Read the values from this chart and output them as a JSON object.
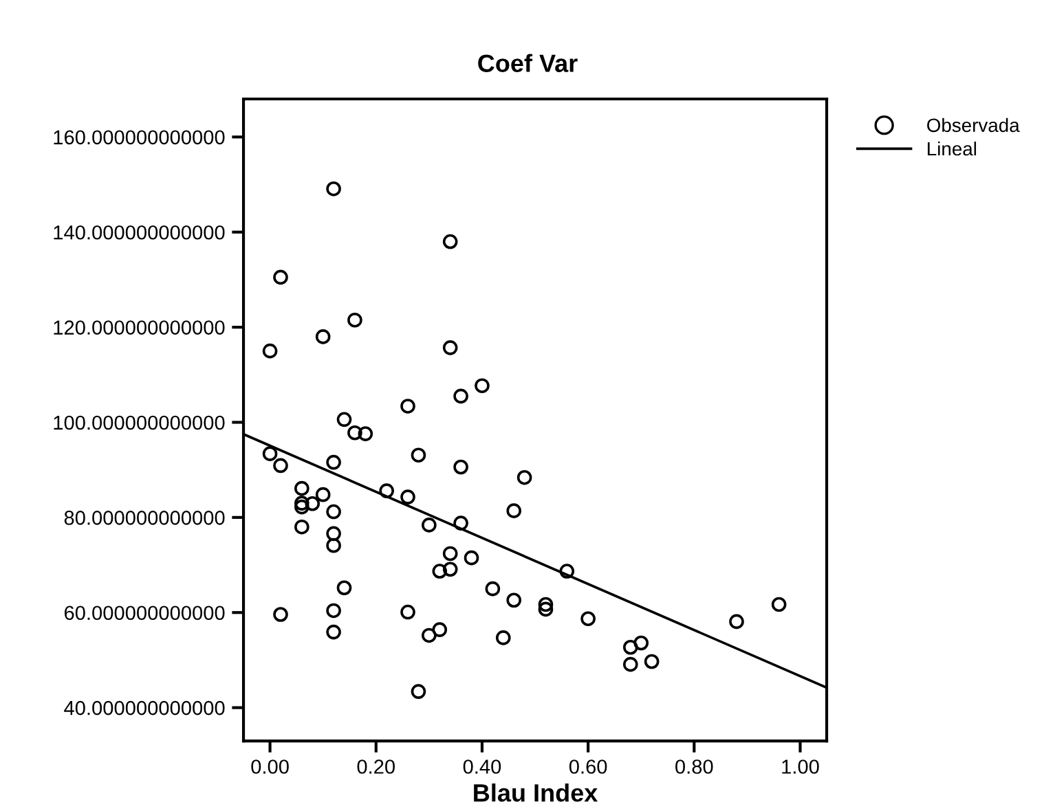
{
  "chart_data": {
    "type": "scatter",
    "title": "Coef Var",
    "xlabel": "Blau Index",
    "xlim": [
      -0.05,
      1.05
    ],
    "ylim": [
      33,
      168
    ],
    "xticks": [
      {
        "value": 0,
        "label": "0.00"
      },
      {
        "value": 0.2,
        "label": "0.20"
      },
      {
        "value": 0.4,
        "label": "0.40"
      },
      {
        "value": 0.6,
        "label": "0.60"
      },
      {
        "value": 0.8,
        "label": "0.80"
      },
      {
        "value": 1.0,
        "label": "1.00"
      }
    ],
    "yticks": [
      {
        "value": 40,
        "label": "40.000000000000"
      },
      {
        "value": 60,
        "label": "60.000000000000"
      },
      {
        "value": 80,
        "label": "80.000000000000"
      },
      {
        "value": 100,
        "label": "100.000000000000"
      },
      {
        "value": 120,
        "label": "120.000000000000"
      },
      {
        "value": 140,
        "label": "140.000000000000"
      },
      {
        "value": 160,
        "label": "160.000000000000"
      }
    ],
    "grid": false,
    "legend": "top right",
    "marker": "circle",
    "series": [
      {
        "name": "Observada",
        "color": "#000000",
        "x": [
          0.12,
          0.34,
          0.02,
          0.16,
          0.1,
          0.0,
          0.34,
          0.4,
          0.36,
          0.26,
          0.14,
          0.16,
          0.18,
          0.0,
          0.02,
          0.12,
          0.28,
          0.36,
          0.48,
          0.06,
          0.1,
          0.08,
          0.06,
          0.06,
          0.12,
          0.22,
          0.26,
          0.3,
          0.36,
          0.46,
          0.06,
          0.12,
          0.12,
          0.34,
          0.38,
          0.32,
          0.34,
          0.14,
          0.42,
          0.46,
          0.02,
          0.12,
          0.26,
          0.12,
          0.3,
          0.32,
          0.44,
          0.28,
          0.56,
          0.52,
          0.52,
          0.6,
          0.7,
          0.68,
          0.68,
          0.72,
          0.88,
          0.96
        ],
        "values": [
          149.1,
          138.0,
          130.5,
          121.5,
          118.0,
          115.0,
          115.7,
          107.7,
          105.5,
          103.4,
          100.6,
          97.8,
          97.6,
          93.4,
          90.9,
          91.6,
          93.1,
          90.6,
          88.4,
          86.1,
          84.8,
          82.9,
          83.0,
          82.2,
          81.2,
          85.6,
          84.3,
          78.4,
          78.8,
          81.4,
          78.0,
          76.6,
          74.1,
          72.4,
          71.5,
          68.7,
          69.1,
          65.2,
          65.0,
          62.6,
          59.6,
          60.4,
          60.1,
          55.9,
          55.2,
          56.4,
          54.7,
          43.4,
          68.7,
          61.7,
          60.7,
          58.7,
          53.6,
          52.7,
          49.1,
          49.7,
          58.1,
          61.7
        ]
      },
      {
        "name": "Lineal",
        "type": "line",
        "color": "#000000",
        "marker": "none",
        "line_style": "solid",
        "x": [
          -0.05,
          1.05
        ],
        "values": [
          97.5,
          44.2
        ]
      }
    ]
  }
}
